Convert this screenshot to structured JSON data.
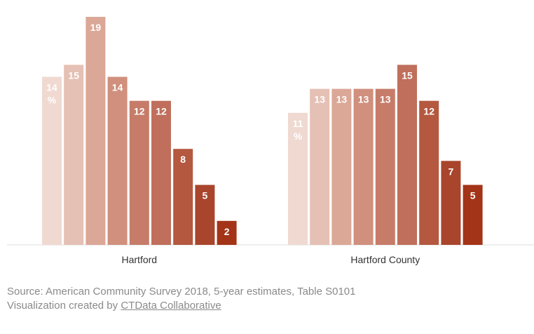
{
  "chart_data": {
    "type": "bar",
    "groups": [
      {
        "name": "Hartford",
        "values": [
          14,
          15,
          19,
          14,
          12,
          12,
          8,
          5,
          2
        ],
        "labels": [
          "14 %",
          "15",
          "19",
          "14",
          "12",
          "12",
          "8",
          "5",
          "2"
        ]
      },
      {
        "name": "Hartford County",
        "values": [
          11,
          13,
          13,
          13,
          13,
          15,
          12,
          7,
          5
        ],
        "labels": [
          "11 %",
          "13",
          "13",
          "13",
          "13",
          "15",
          "12",
          "7",
          "5"
        ]
      }
    ],
    "ylim": [
      0,
      19
    ],
    "grid": false,
    "legend": "none",
    "value_unit": "%"
  },
  "colors": [
    "#efd9d1",
    "#e5c0b4",
    "#dba797",
    "#d0907d",
    "#c67c69",
    "#bf6f5c",
    "#b45840",
    "#a8452c",
    "#a33418"
  ],
  "footer": {
    "source": "Source: American Community Survey 2018, 5-year estimates, Table S0101",
    "created_prefix": "Visualization created by ",
    "created_link": "CTData Collaborative"
  }
}
